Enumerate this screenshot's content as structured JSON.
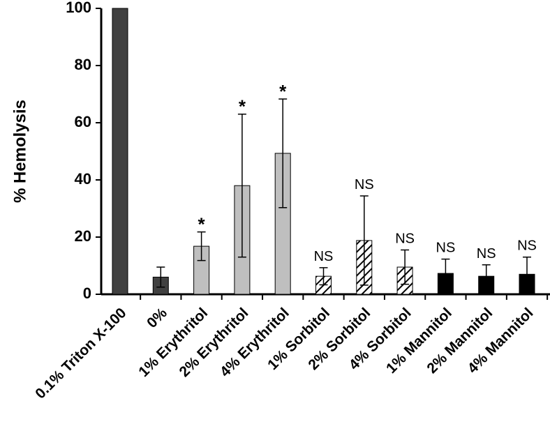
{
  "chart_data": {
    "type": "bar",
    "y_label": "% Hemolysis",
    "categories": [
      "0.1% Triton X-100",
      "0%",
      "1% Erythritol",
      "2% Erythritol",
      "4% Erythritol",
      "1% Sorbitol",
      "2% Sorbitol",
      "4% Sorbitol",
      "1% Mannitol",
      "2% Mannitol",
      "4% Mannitol"
    ],
    "values": [
      100,
      6,
      16.8,
      38,
      49.3,
      6.3,
      18.8,
      9.5,
      7.3,
      6.3,
      7
    ],
    "errors": [
      null,
      3.5,
      5,
      25,
      19,
      3,
      15.6,
      6,
      5,
      4,
      6
    ],
    "annotations": [
      null,
      null,
      "*",
      "*",
      "*",
      "NS",
      "NS",
      "NS",
      "NS",
      "NS",
      "NS"
    ],
    "colors": [
      "#404040",
      "#404040",
      "#bfbfbf",
      "#bfbfbf",
      "#bfbfbf",
      "#000000",
      "#000000",
      "#000000",
      "#000000",
      "#000000",
      "#000000"
    ],
    "hatched": [
      false,
      false,
      false,
      false,
      false,
      true,
      true,
      true,
      false,
      false,
      false
    ],
    "ylim": [
      0,
      100
    ],
    "yticks": [
      0,
      20,
      40,
      60,
      80,
      100
    ]
  }
}
